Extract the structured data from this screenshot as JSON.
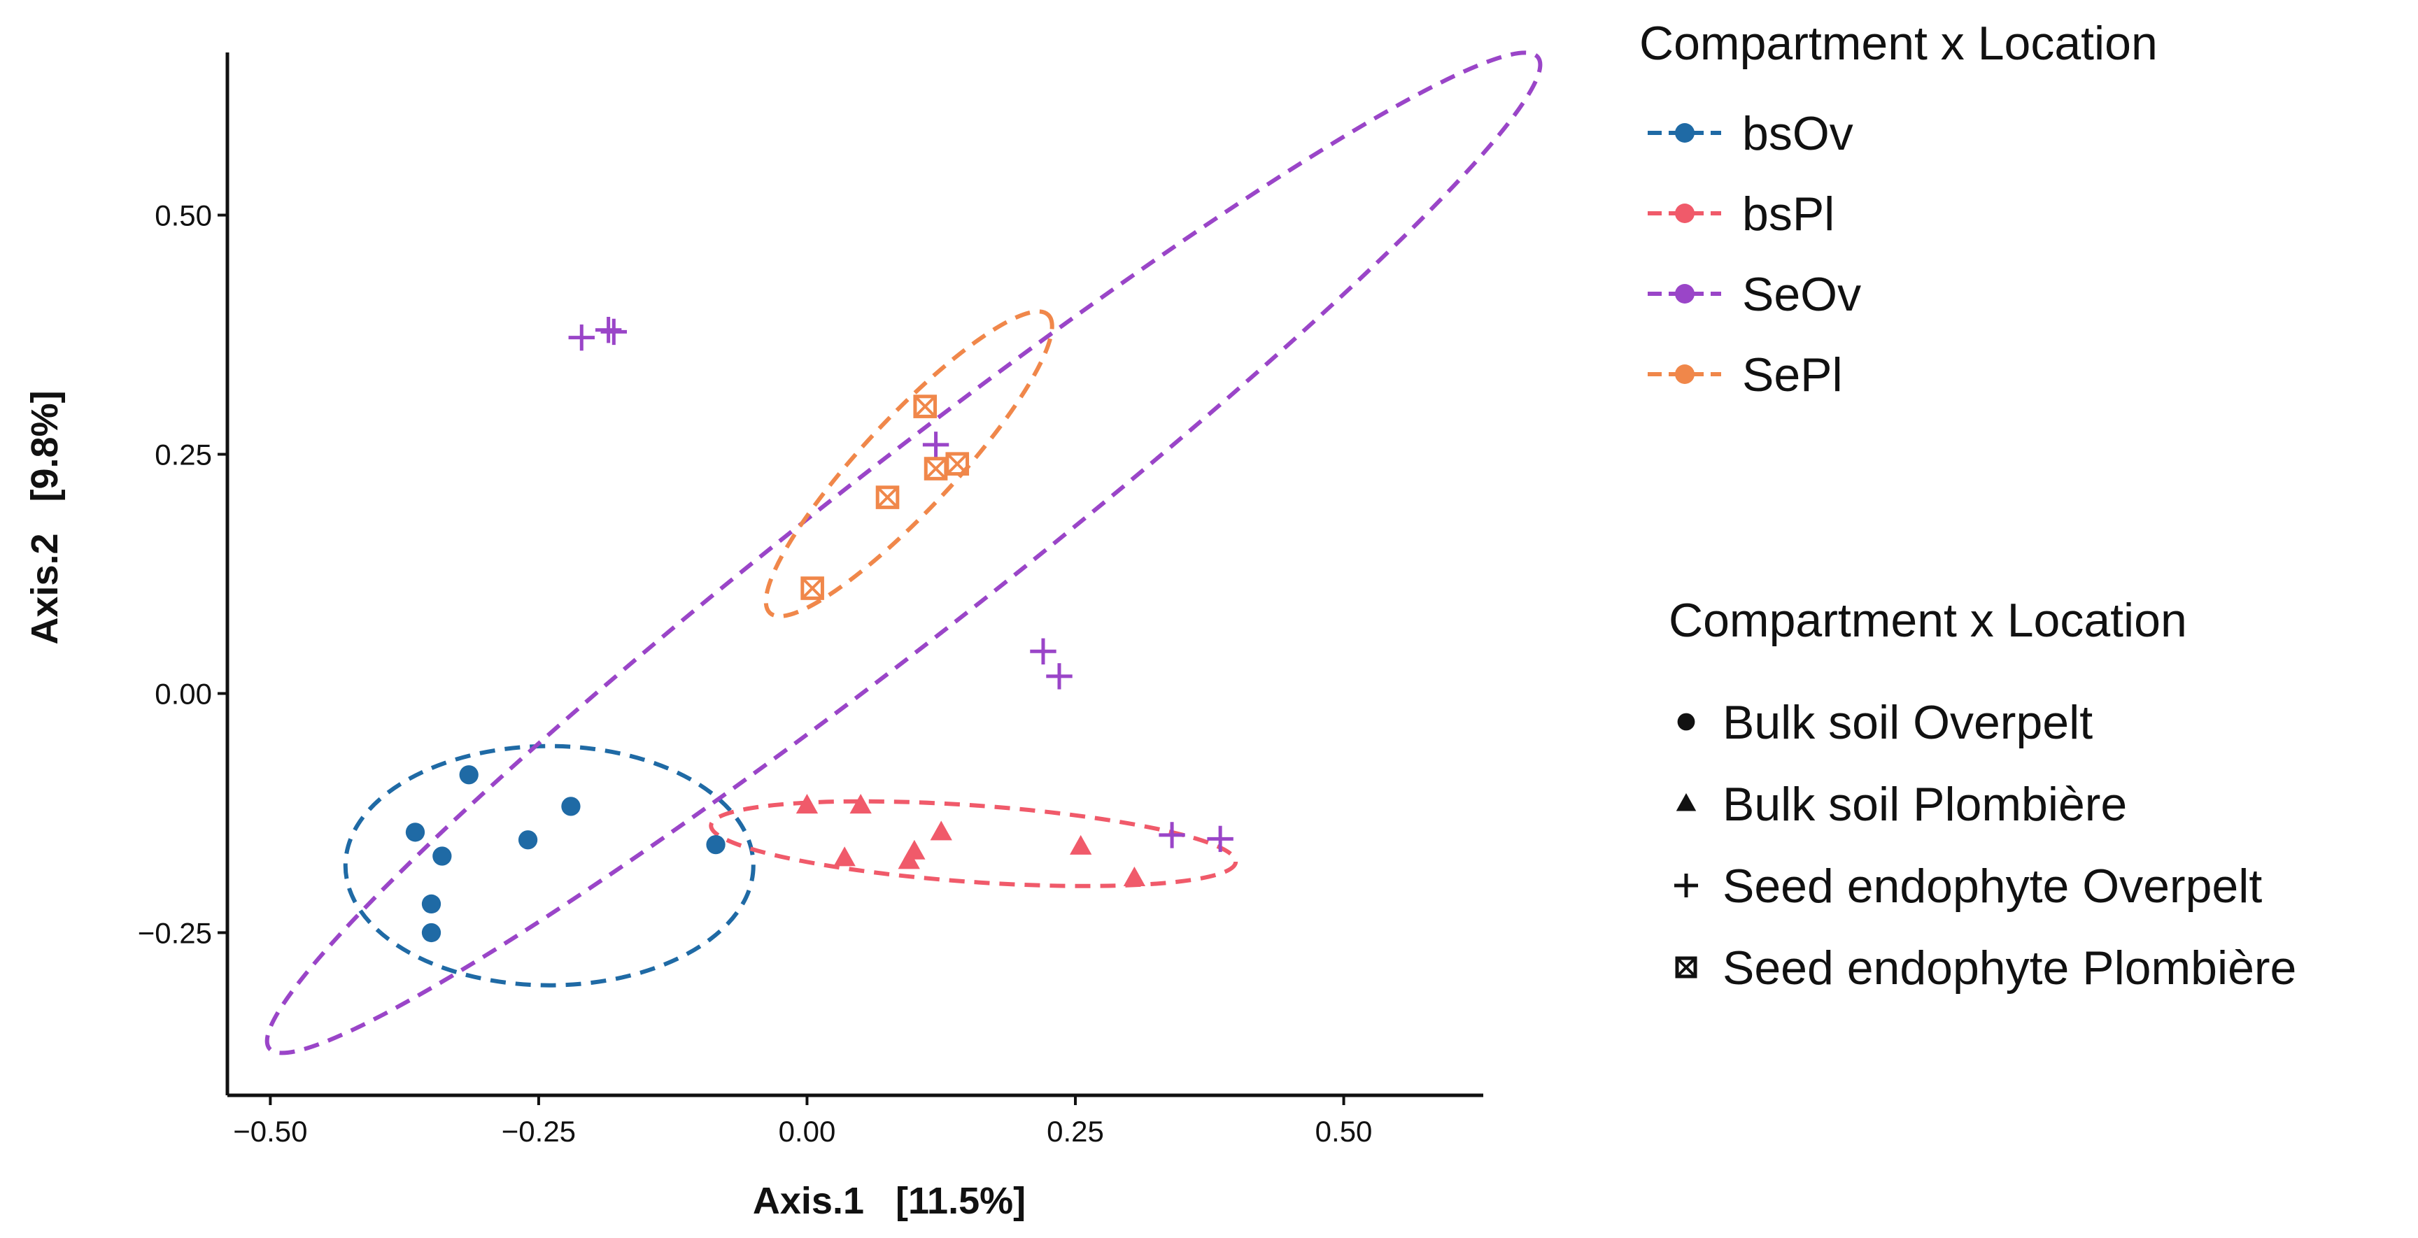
{
  "chart_data": {
    "type": "scatter",
    "xlabel": "Axis.1   [11.5%]",
    "ylabel": "Axis.2   [9.8%]",
    "xlim": [
      -0.54,
      0.63
    ],
    "ylim": [
      -0.42,
      0.67
    ],
    "xticks": [
      -0.5,
      -0.25,
      0.0,
      0.25,
      0.5
    ],
    "xtick_labels": [
      "−0.50",
      "−0.25",
      "0.00",
      "0.25",
      "0.50"
    ],
    "yticks": [
      -0.25,
      0.0,
      0.25,
      0.5
    ],
    "ytick_labels": [
      "−0.25",
      "0.00",
      "0.25",
      "0.50"
    ],
    "grid": false,
    "legend_position": "right",
    "color_legend": {
      "title": "Compartment x Location",
      "items": [
        {
          "label": "bsOv",
          "color": "#1f6aa5"
        },
        {
          "label": "bsPl",
          "color": "#f05a6a"
        },
        {
          "label": "SeOv",
          "color": "#9a45c8"
        },
        {
          "label": "SePl",
          "color": "#f0874a"
        }
      ]
    },
    "shape_legend": {
      "title": "Compartment x Location",
      "items": [
        {
          "label": "Bulk soil Overpelt",
          "shape": "circle"
        },
        {
          "label": "Bulk soil Plombière",
          "shape": "triangle"
        },
        {
          "label": "Seed endophyte Overpelt",
          "shape": "plus"
        },
        {
          "label": "Seed endophyte Plombière",
          "shape": "boxed-x"
        }
      ]
    },
    "series": [
      {
        "name": "bsOv",
        "color": "#1f6aa5",
        "shape": "circle",
        "points": [
          {
            "x": -0.315,
            "y": -0.085
          },
          {
            "x": -0.22,
            "y": -0.118
          },
          {
            "x": -0.365,
            "y": -0.145
          },
          {
            "x": -0.34,
            "y": -0.17
          },
          {
            "x": -0.26,
            "y": -0.153
          },
          {
            "x": -0.085,
            "y": -0.158
          },
          {
            "x": -0.35,
            "y": -0.22
          },
          {
            "x": -0.35,
            "y": -0.25
          }
        ],
        "ellipse": {
          "cx": -0.24,
          "cy": -0.18,
          "rx": 0.19,
          "ry": 0.125,
          "angle_deg": 0
        }
      },
      {
        "name": "bsPl",
        "color": "#f05a6a",
        "shape": "triangle",
        "points": [
          {
            "x": 0.0,
            "y": -0.117
          },
          {
            "x": 0.05,
            "y": -0.117
          },
          {
            "x": 0.125,
            "y": -0.145
          },
          {
            "x": 0.1,
            "y": -0.165
          },
          {
            "x": 0.095,
            "y": -0.175
          },
          {
            "x": 0.035,
            "y": -0.172
          },
          {
            "x": 0.255,
            "y": -0.16
          },
          {
            "x": 0.305,
            "y": -0.193
          }
        ],
        "ellipse": {
          "cx": 0.155,
          "cy": -0.157,
          "rx": 0.245,
          "ry": 0.04,
          "angle_deg": -4
        }
      },
      {
        "name": "SeOv",
        "color": "#9a45c8",
        "shape": "plus",
        "points": [
          {
            "x": -0.21,
            "y": 0.372
          },
          {
            "x": -0.185,
            "y": 0.38
          },
          {
            "x": -0.18,
            "y": 0.378
          },
          {
            "x": 0.12,
            "y": 0.26
          },
          {
            "x": 0.22,
            "y": 0.044
          },
          {
            "x": 0.235,
            "y": 0.018
          },
          {
            "x": 0.34,
            "y": -0.148
          },
          {
            "x": 0.385,
            "y": -0.152
          }
        ],
        "ellipse": {
          "cx": 0.09,
          "cy": 0.147,
          "rx": 0.75,
          "ry": 0.09,
          "angle_deg": 38
        }
      },
      {
        "name": "SePl",
        "color": "#f0874a",
        "shape": "boxed-x",
        "points": [
          {
            "x": 0.11,
            "y": 0.3
          },
          {
            "x": 0.12,
            "y": 0.235
          },
          {
            "x": 0.14,
            "y": 0.24
          },
          {
            "x": 0.075,
            "y": 0.205
          },
          {
            "x": 0.005,
            "y": 0.11
          }
        ],
        "ellipse": {
          "cx": 0.095,
          "cy": 0.24,
          "rx": 0.19,
          "ry": 0.048,
          "angle_deg": 47
        }
      }
    ]
  }
}
